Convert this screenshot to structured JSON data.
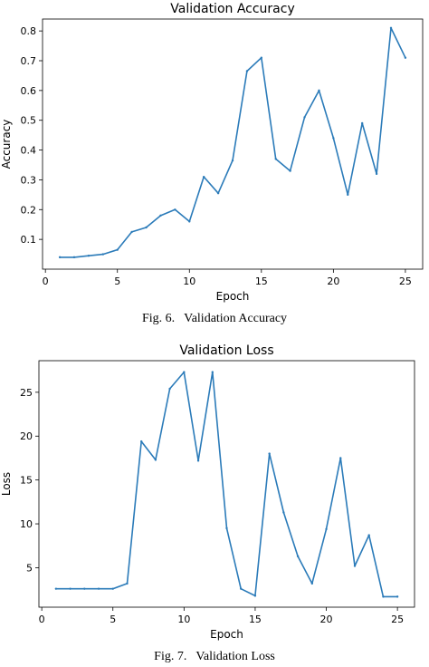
{
  "colors": {
    "line": "#2b7bb9",
    "axis": "#000000"
  },
  "chart_data": [
    {
      "type": "line",
      "title": "Validation Accuracy",
      "xlabel": "Epoch",
      "ylabel": "Accuracy",
      "xlim": [
        -0.2,
        26.2
      ],
      "ylim": [
        0.0,
        0.84
      ],
      "xticks": [
        0,
        5,
        10,
        15,
        20,
        25
      ],
      "yticks": [
        0.1,
        0.2,
        0.3,
        0.4,
        0.5,
        0.6,
        0.7,
        0.8
      ],
      "ytick_labels": [
        "0.1",
        "0.2",
        "0.3",
        "0.4",
        "0.5",
        "0.6",
        "0.7",
        "0.8"
      ],
      "grid": false,
      "x": [
        1,
        2,
        3,
        4,
        5,
        6,
        7,
        8,
        9,
        10,
        11,
        12,
        13,
        14,
        15,
        16,
        17,
        18,
        19,
        20,
        21,
        22,
        23,
        24,
        25
      ],
      "series": [
        {
          "values": [
            0.04,
            0.04,
            0.045,
            0.05,
            0.065,
            0.125,
            0.14,
            0.18,
            0.2,
            0.16,
            0.31,
            0.255,
            0.365,
            0.665,
            0.71,
            0.37,
            0.33,
            0.51,
            0.6,
            0.44,
            0.25,
            0.49,
            0.32,
            0.81,
            0.71
          ]
        }
      ],
      "caption_num": "Fig. 6.",
      "caption_text": "Validation Accuracy"
    },
    {
      "type": "line",
      "title": "Validation Loss",
      "xlabel": "Epoch",
      "ylabel": "Loss",
      "xlim": [
        -0.2,
        26.2
      ],
      "ylim": [
        0.5,
        28.6
      ],
      "xticks": [
        0,
        5,
        10,
        15,
        20,
        25
      ],
      "yticks": [
        5,
        10,
        15,
        20,
        25
      ],
      "ytick_labels": [
        "5",
        "10",
        "15",
        "20",
        "25"
      ],
      "grid": false,
      "x": [
        1,
        2,
        3,
        4,
        5,
        6,
        7,
        8,
        9,
        10,
        11,
        12,
        13,
        14,
        15,
        16,
        17,
        18,
        19,
        20,
        21,
        22,
        23,
        24,
        25
      ],
      "series": [
        {
          "values": [
            2.6,
            2.6,
            2.6,
            2.6,
            2.6,
            3.2,
            19.4,
            17.3,
            25.4,
            27.3,
            17.2,
            27.3,
            9.5,
            2.6,
            1.8,
            18.0,
            11.3,
            6.3,
            3.2,
            9.4,
            17.5,
            5.2,
            8.7,
            1.7,
            1.7
          ]
        }
      ],
      "caption_num": "Fig. 7.",
      "caption_text": "Validation Loss"
    }
  ]
}
